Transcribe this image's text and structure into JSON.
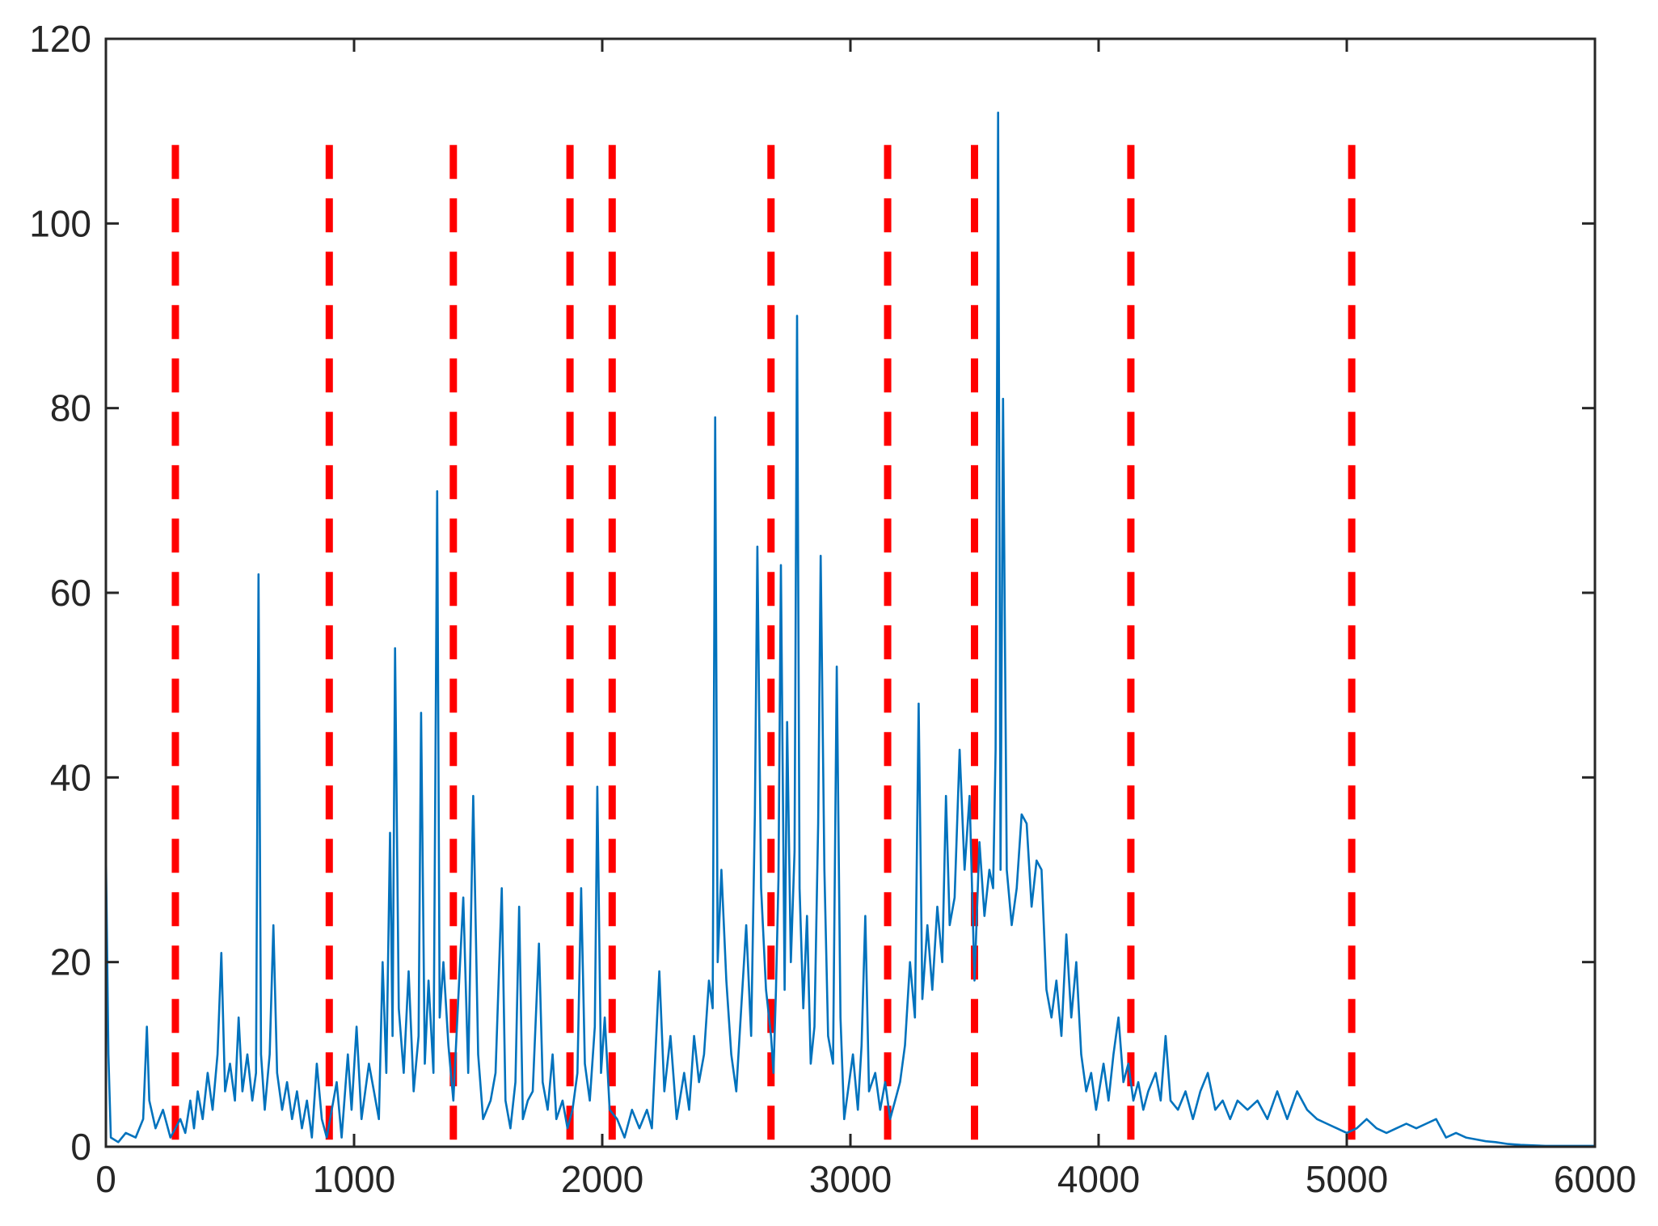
{
  "chart_data": {
    "type": "line",
    "title": "",
    "xlabel": "",
    "ylabel": "",
    "xlim": [
      0,
      6000
    ],
    "ylim": [
      0,
      120
    ],
    "xticks": [
      0,
      1000,
      2000,
      3000,
      4000,
      5000,
      6000
    ],
    "yticks": [
      0,
      20,
      40,
      60,
      80,
      100,
      120
    ],
    "grid": false,
    "legend": "none",
    "colors": {
      "series": "#0072BD",
      "markers": "#FF0000",
      "axis": "#262626"
    },
    "series": [
      {
        "points": [
          [
            0,
            32
          ],
          [
            10,
            10
          ],
          [
            20,
            1
          ],
          [
            50,
            0.5
          ],
          [
            80,
            1.5
          ],
          [
            120,
            1
          ],
          [
            150,
            3
          ],
          [
            165,
            13
          ],
          [
            175,
            5
          ],
          [
            200,
            2
          ],
          [
            230,
            4
          ],
          [
            260,
            1
          ],
          [
            300,
            3
          ],
          [
            320,
            1.5
          ],
          [
            340,
            5
          ],
          [
            355,
            2
          ],
          [
            370,
            6
          ],
          [
            390,
            3
          ],
          [
            410,
            8
          ],
          [
            430,
            4
          ],
          [
            450,
            10
          ],
          [
            465,
            21
          ],
          [
            480,
            6
          ],
          [
            500,
            9
          ],
          [
            520,
            5
          ],
          [
            535,
            14
          ],
          [
            550,
            6
          ],
          [
            570,
            10
          ],
          [
            590,
            5
          ],
          [
            605,
            8
          ],
          [
            615,
            62
          ],
          [
            625,
            10
          ],
          [
            640,
            4
          ],
          [
            660,
            10
          ],
          [
            675,
            24
          ],
          [
            690,
            8
          ],
          [
            710,
            4
          ],
          [
            730,
            7
          ],
          [
            750,
            3
          ],
          [
            770,
            6
          ],
          [
            790,
            2
          ],
          [
            810,
            5
          ],
          [
            830,
            1
          ],
          [
            850,
            9
          ],
          [
            870,
            3
          ],
          [
            890,
            1
          ],
          [
            910,
            4
          ],
          [
            930,
            7
          ],
          [
            950,
            1
          ],
          [
            975,
            10
          ],
          [
            990,
            4
          ],
          [
            1010,
            13
          ],
          [
            1030,
            3
          ],
          [
            1060,
            9
          ],
          [
            1080,
            6
          ],
          [
            1100,
            3
          ],
          [
            1115,
            20
          ],
          [
            1130,
            8
          ],
          [
            1145,
            34
          ],
          [
            1155,
            12
          ],
          [
            1165,
            54
          ],
          [
            1180,
            15
          ],
          [
            1200,
            8
          ],
          [
            1220,
            19
          ],
          [
            1240,
            6
          ],
          [
            1260,
            12
          ],
          [
            1270,
            47
          ],
          [
            1285,
            9
          ],
          [
            1300,
            18
          ],
          [
            1320,
            8
          ],
          [
            1335,
            71
          ],
          [
            1345,
            14
          ],
          [
            1360,
            20
          ],
          [
            1380,
            11
          ],
          [
            1400,
            5
          ],
          [
            1420,
            16
          ],
          [
            1440,
            27
          ],
          [
            1460,
            8
          ],
          [
            1480,
            38
          ],
          [
            1500,
            10
          ],
          [
            1520,
            3
          ],
          [
            1550,
            5
          ],
          [
            1570,
            8
          ],
          [
            1595,
            28
          ],
          [
            1610,
            5
          ],
          [
            1630,
            2
          ],
          [
            1650,
            7
          ],
          [
            1665,
            26
          ],
          [
            1680,
            3
          ],
          [
            1700,
            5
          ],
          [
            1720,
            6
          ],
          [
            1745,
            22
          ],
          [
            1760,
            7
          ],
          [
            1780,
            4
          ],
          [
            1800,
            10
          ],
          [
            1815,
            3
          ],
          [
            1840,
            5
          ],
          [
            1860,
            2
          ],
          [
            1880,
            4
          ],
          [
            1900,
            8
          ],
          [
            1915,
            28
          ],
          [
            1930,
            9
          ],
          [
            1950,
            5
          ],
          [
            1970,
            13
          ],
          [
            1980,
            39
          ],
          [
            1995,
            8
          ],
          [
            2010,
            14
          ],
          [
            2030,
            4
          ],
          [
            2060,
            3
          ],
          [
            2090,
            1
          ],
          [
            2120,
            4
          ],
          [
            2150,
            2
          ],
          [
            2180,
            4
          ],
          [
            2200,
            2
          ],
          [
            2230,
            19
          ],
          [
            2250,
            6
          ],
          [
            2275,
            12
          ],
          [
            2300,
            3
          ],
          [
            2330,
            8
          ],
          [
            2350,
            4
          ],
          [
            2370,
            12
          ],
          [
            2390,
            7
          ],
          [
            2410,
            10
          ],
          [
            2430,
            18
          ],
          [
            2445,
            15
          ],
          [
            2455,
            79
          ],
          [
            2465,
            20
          ],
          [
            2480,
            30
          ],
          [
            2500,
            18
          ],
          [
            2520,
            10
          ],
          [
            2540,
            6
          ],
          [
            2560,
            15
          ],
          [
            2580,
            24
          ],
          [
            2600,
            12
          ],
          [
            2615,
            36
          ],
          [
            2625,
            65
          ],
          [
            2640,
            28
          ],
          [
            2660,
            17
          ],
          [
            2680,
            12
          ],
          [
            2690,
            8
          ],
          [
            2700,
            17
          ],
          [
            2710,
            29
          ],
          [
            2720,
            63
          ],
          [
            2735,
            17
          ],
          [
            2745,
            46
          ],
          [
            2760,
            20
          ],
          [
            2775,
            32
          ],
          [
            2785,
            90
          ],
          [
            2795,
            28
          ],
          [
            2810,
            15
          ],
          [
            2825,
            25
          ],
          [
            2840,
            9
          ],
          [
            2855,
            13
          ],
          [
            2870,
            35
          ],
          [
            2880,
            64
          ],
          [
            2895,
            30
          ],
          [
            2910,
            12
          ],
          [
            2930,
            9
          ],
          [
            2945,
            52
          ],
          [
            2960,
            14
          ],
          [
            2975,
            3
          ],
          [
            2990,
            6
          ],
          [
            3010,
            10
          ],
          [
            3030,
            4
          ],
          [
            3045,
            11
          ],
          [
            3060,
            25
          ],
          [
            3075,
            6
          ],
          [
            3100,
            8
          ],
          [
            3120,
            4
          ],
          [
            3140,
            7
          ],
          [
            3160,
            3
          ],
          [
            3180,
            5
          ],
          [
            3200,
            7
          ],
          [
            3220,
            11
          ],
          [
            3240,
            20
          ],
          [
            3260,
            14
          ],
          [
            3275,
            48
          ],
          [
            3290,
            16
          ],
          [
            3310,
            24
          ],
          [
            3330,
            17
          ],
          [
            3350,
            26
          ],
          [
            3370,
            20
          ],
          [
            3385,
            38
          ],
          [
            3400,
            24
          ],
          [
            3420,
            27
          ],
          [
            3440,
            43
          ],
          [
            3460,
            30
          ],
          [
            3480,
            38
          ],
          [
            3500,
            18
          ],
          [
            3520,
            33
          ],
          [
            3540,
            25
          ],
          [
            3560,
            30
          ],
          [
            3575,
            28
          ],
          [
            3585,
            43
          ],
          [
            3595,
            112
          ],
          [
            3605,
            30
          ],
          [
            3615,
            81
          ],
          [
            3630,
            30
          ],
          [
            3650,
            24
          ],
          [
            3670,
            28
          ],
          [
            3690,
            36
          ],
          [
            3710,
            35
          ],
          [
            3730,
            26
          ],
          [
            3750,
            31
          ],
          [
            3770,
            30
          ],
          [
            3790,
            17
          ],
          [
            3810,
            14
          ],
          [
            3830,
            18
          ],
          [
            3850,
            12
          ],
          [
            3870,
            23
          ],
          [
            3890,
            14
          ],
          [
            3910,
            20
          ],
          [
            3930,
            10
          ],
          [
            3950,
            6
          ],
          [
            3970,
            8
          ],
          [
            3990,
            4
          ],
          [
            4020,
            9
          ],
          [
            4040,
            5
          ],
          [
            4060,
            10
          ],
          [
            4080,
            14
          ],
          [
            4100,
            7
          ],
          [
            4120,
            9
          ],
          [
            4140,
            5
          ],
          [
            4160,
            7
          ],
          [
            4180,
            4
          ],
          [
            4200,
            6
          ],
          [
            4230,
            8
          ],
          [
            4250,
            5
          ],
          [
            4270,
            12
          ],
          [
            4290,
            5
          ],
          [
            4320,
            4
          ],
          [
            4350,
            6
          ],
          [
            4380,
            3
          ],
          [
            4410,
            6
          ],
          [
            4440,
            8
          ],
          [
            4470,
            4
          ],
          [
            4500,
            5
          ],
          [
            4530,
            3
          ],
          [
            4560,
            5
          ],
          [
            4600,
            4
          ],
          [
            4640,
            5
          ],
          [
            4680,
            3
          ],
          [
            4720,
            6
          ],
          [
            4760,
            3
          ],
          [
            4800,
            6
          ],
          [
            4840,
            4
          ],
          [
            4880,
            3
          ],
          [
            4920,
            2.5
          ],
          [
            4960,
            2
          ],
          [
            5000,
            1.5
          ],
          [
            5040,
            2
          ],
          [
            5080,
            3
          ],
          [
            5120,
            2
          ],
          [
            5160,
            1.5
          ],
          [
            5200,
            2
          ],
          [
            5240,
            2.5
          ],
          [
            5280,
            2
          ],
          [
            5320,
            2.5
          ],
          [
            5360,
            3
          ],
          [
            5400,
            1
          ],
          [
            5440,
            1.5
          ],
          [
            5480,
            1
          ],
          [
            5520,
            0.8
          ],
          [
            5560,
            0.6
          ],
          [
            5600,
            0.5
          ],
          [
            5650,
            0.3
          ],
          [
            5700,
            0.2
          ],
          [
            5800,
            0.1
          ],
          [
            5900,
            0.1
          ],
          [
            6000,
            0.1
          ]
        ]
      }
    ],
    "vertical_lines": [
      280,
      900,
      1400,
      1870,
      2040,
      2680,
      3150,
      3500,
      4130,
      5020
    ]
  }
}
